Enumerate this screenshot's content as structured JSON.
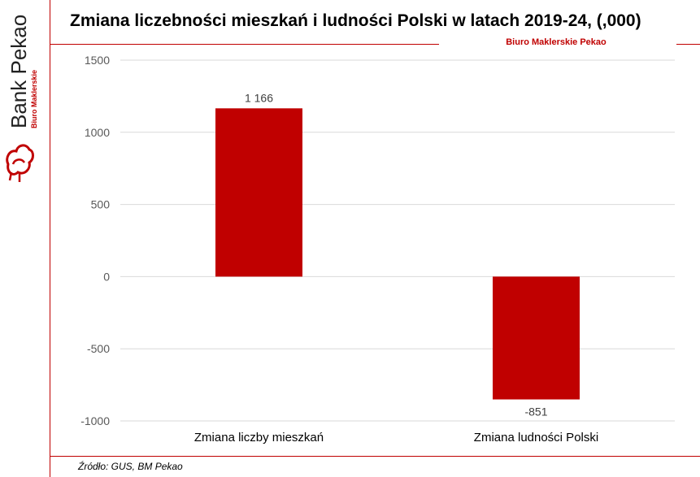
{
  "brand": {
    "name": "Bank Pekao",
    "division": "Biuro Maklerskie"
  },
  "header": {
    "title": "Zmiana liczebności mieszkań i ludności Polski w latach 2019-24, (,000)",
    "subtitle": "Biuro Maklerskie Pekao"
  },
  "footer": {
    "source": "Źródło: GUS, BM Pekao"
  },
  "colors": {
    "accent": "#c00000",
    "bar": "#c00000",
    "grid": "#d9d9d9",
    "axis_text": "#595959"
  },
  "chart_data": {
    "type": "bar",
    "categories": [
      "Zmiana liczby mieszkań",
      "Zmiana ludności Polski"
    ],
    "values": [
      1166,
      -851
    ],
    "data_labels": [
      "1 166",
      "-851"
    ],
    "yticks": [
      1500,
      1000,
      500,
      0,
      -500,
      -1000
    ],
    "ytick_labels": [
      "1500",
      "1000",
      "500",
      "0",
      "-500",
      "-1000"
    ],
    "ylim": [
      -1000,
      1500
    ],
    "grid": true,
    "legend": false
  }
}
